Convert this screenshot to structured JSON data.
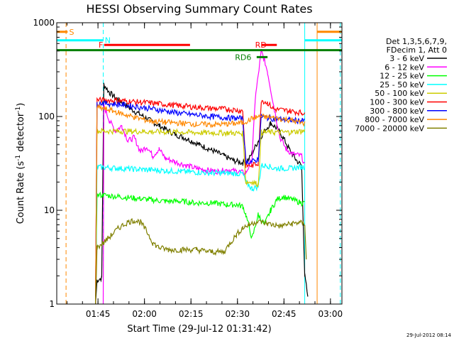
{
  "chart_data": {
    "type": "line",
    "title": "HESSI Observing Summary Count Rates",
    "xlabel": "Start Time (29-Jul-12 01:31:42)",
    "ylabel_parts": [
      "Count Rate (s",
      "-1",
      " detector",
      "-1",
      ")"
    ],
    "yscale": "log",
    "ylim": [
      1,
      1000
    ],
    "xlim_minutes": [
      0,
      92
    ],
    "y_ticks": [
      {
        "value": 1,
        "label": "1"
      },
      {
        "value": 10,
        "label": "10"
      },
      {
        "value": 100,
        "label": "100"
      },
      {
        "value": 1000,
        "label": "1000"
      }
    ],
    "x_ticks": [
      {
        "minute": 13.3,
        "label": "01:45"
      },
      {
        "minute": 28.3,
        "label": "02:00"
      },
      {
        "minute": 43.3,
        "label": "02:15"
      },
      {
        "minute": 58.3,
        "label": "02:30"
      },
      {
        "minute": 73.3,
        "label": "02:45"
      },
      {
        "minute": 88.3,
        "label": "03:00"
      }
    ],
    "legend_header": [
      "Det 1,3,5,6,7,9,",
      "FDecim 1, Att 0"
    ],
    "series": [
      {
        "name": "3 - 6 keV",
        "color": "#000000",
        "points": [
          [
            12.5,
            1
          ],
          [
            13,
            1.8
          ],
          [
            14.5,
            1.9
          ],
          [
            15.2,
            220
          ],
          [
            17,
            180
          ],
          [
            20,
            150
          ],
          [
            24,
            120
          ],
          [
            28,
            100
          ],
          [
            33,
            80
          ],
          [
            38,
            65
          ],
          [
            42,
            58
          ],
          [
            46,
            50
          ],
          [
            50,
            44
          ],
          [
            54,
            38
          ],
          [
            57,
            34
          ],
          [
            60,
            32
          ],
          [
            62,
            35
          ],
          [
            65,
            55
          ],
          [
            67,
            70
          ],
          [
            69,
            85
          ],
          [
            71,
            75
          ],
          [
            73,
            60
          ],
          [
            75,
            45
          ],
          [
            77,
            35
          ],
          [
            79,
            30
          ],
          [
            80,
            2
          ],
          [
            81,
            1.2
          ]
        ]
      },
      {
        "name": "6 - 12 keV",
        "color": "#ff00ff",
        "points": [
          [
            15,
            1
          ],
          [
            15.2,
            130
          ],
          [
            17,
            90
          ],
          [
            19,
            70
          ],
          [
            21,
            80
          ],
          [
            23,
            55
          ],
          [
            25,
            60
          ],
          [
            27,
            42
          ],
          [
            29,
            48
          ],
          [
            31,
            38
          ],
          [
            33,
            45
          ],
          [
            35,
            36
          ],
          [
            38,
            33
          ],
          [
            42,
            30
          ],
          [
            45,
            28
          ],
          [
            48,
            27
          ],
          [
            52,
            26
          ],
          [
            55,
            27
          ],
          [
            58,
            26
          ],
          [
            61,
            25
          ],
          [
            63,
            35
          ],
          [
            64,
            150
          ],
          [
            66,
            500
          ],
          [
            67,
            400
          ],
          [
            68,
            300
          ],
          [
            70,
            130
          ],
          [
            72,
            60
          ],
          [
            74,
            45
          ],
          [
            76,
            40
          ],
          [
            79,
            38
          ],
          [
            80,
            30
          ]
        ]
      },
      {
        "name": "12 - 25 keV",
        "color": "#00ff00",
        "points": [
          [
            12.5,
            1
          ],
          [
            13,
            14.5
          ],
          [
            15,
            14.5
          ],
          [
            20,
            14
          ],
          [
            25,
            13.5
          ],
          [
            30,
            13
          ],
          [
            35,
            12.5
          ],
          [
            40,
            12.5
          ],
          [
            45,
            12
          ],
          [
            50,
            12
          ],
          [
            55,
            11.5
          ],
          [
            58,
            11.5
          ],
          [
            60,
            11
          ],
          [
            61,
            9
          ],
          [
            63,
            5
          ],
          [
            65,
            9
          ],
          [
            67,
            7
          ],
          [
            69,
            10
          ],
          [
            71,
            13
          ],
          [
            73,
            14
          ],
          [
            76,
            13
          ],
          [
            79,
            12
          ],
          [
            80,
            12
          ]
        ]
      },
      {
        "name": "25 - 50 keV",
        "color": "#00ffff",
        "points": [
          [
            12.5,
            1
          ],
          [
            13,
            29
          ],
          [
            20,
            28
          ],
          [
            30,
            27
          ],
          [
            40,
            26
          ],
          [
            50,
            25
          ],
          [
            55,
            25
          ],
          [
            60,
            24.5
          ],
          [
            61,
            20
          ],
          [
            63,
            17
          ],
          [
            65,
            18
          ],
          [
            66,
            30
          ],
          [
            68,
            30
          ],
          [
            70,
            28
          ],
          [
            75,
            28
          ],
          [
            79,
            29
          ],
          [
            80,
            29
          ]
        ]
      },
      {
        "name": "50 - 100 keV",
        "color": "#cccc00",
        "points": [
          [
            12.5,
            1
          ],
          [
            13,
            70
          ],
          [
            20,
            70
          ],
          [
            30,
            69
          ],
          [
            40,
            68
          ],
          [
            50,
            67
          ],
          [
            55,
            67
          ],
          [
            60,
            66
          ],
          [
            61,
            20
          ],
          [
            63,
            20
          ],
          [
            65,
            19
          ],
          [
            66,
            68
          ],
          [
            70,
            68
          ],
          [
            75,
            68
          ],
          [
            79,
            70
          ],
          [
            80,
            70
          ]
        ]
      },
      {
        "name": "100 - 300 keV",
        "color": "#ff0000",
        "points": [
          [
            12.5,
            1
          ],
          [
            13,
            150
          ],
          [
            20,
            148
          ],
          [
            30,
            140
          ],
          [
            40,
            130
          ],
          [
            50,
            122
          ],
          [
            55,
            120
          ],
          [
            60,
            115
          ],
          [
            61,
            30
          ],
          [
            63,
            30
          ],
          [
            65,
            32
          ],
          [
            66,
            150
          ],
          [
            68,
            140
          ],
          [
            70,
            120
          ],
          [
            75,
            115
          ],
          [
            79,
            110
          ],
          [
            80,
            110
          ]
        ]
      },
      {
        "name": "300 - 800 keV",
        "color": "#0000ff",
        "points": [
          [
            12.5,
            1
          ],
          [
            13,
            140
          ],
          [
            20,
            135
          ],
          [
            30,
            122
          ],
          [
            40,
            108
          ],
          [
            50,
            100
          ],
          [
            55,
            97
          ],
          [
            60,
            95
          ],
          [
            61,
            33
          ],
          [
            63,
            33
          ],
          [
            65,
            35
          ],
          [
            66,
            100
          ],
          [
            68,
            97
          ],
          [
            70,
            95
          ],
          [
            75,
            92
          ],
          [
            79,
            90
          ],
          [
            80,
            90
          ]
        ]
      },
      {
        "name": "800 - 7000 keV",
        "color": "#ff8800",
        "points": [
          [
            12.5,
            1
          ],
          [
            13,
            125
          ],
          [
            16,
            120
          ],
          [
            20,
            110
          ],
          [
            25,
            98
          ],
          [
            30,
            90
          ],
          [
            35,
            87
          ],
          [
            40,
            85
          ],
          [
            45,
            83
          ],
          [
            50,
            82
          ],
          [
            55,
            83
          ],
          [
            60,
            86
          ],
          [
            62,
            92
          ],
          [
            64,
            98
          ],
          [
            66,
            100
          ],
          [
            70,
            97
          ],
          [
            75,
            92
          ],
          [
            79,
            85
          ],
          [
            80,
            85
          ]
        ]
      },
      {
        "name": "7000 - 20000 keV",
        "color": "#808000",
        "points": [
          [
            12.5,
            1
          ],
          [
            13,
            4
          ],
          [
            15,
            4.5
          ],
          [
            17,
            5.2
          ],
          [
            20,
            6.5
          ],
          [
            23,
            7.5
          ],
          [
            25,
            7.8
          ],
          [
            27,
            7.5
          ],
          [
            29,
            6
          ],
          [
            31,
            4.5
          ],
          [
            33,
            4
          ],
          [
            36,
            3.8
          ],
          [
            40,
            3.8
          ],
          [
            45,
            3.8
          ],
          [
            50,
            3.6
          ],
          [
            54,
            3.6
          ],
          [
            56,
            4.5
          ],
          [
            58,
            5.5
          ],
          [
            60,
            6.5
          ],
          [
            62,
            7
          ],
          [
            64,
            7.5
          ],
          [
            66,
            7.5
          ],
          [
            68,
            7.2
          ],
          [
            70,
            7
          ],
          [
            72,
            6.8
          ],
          [
            74,
            7
          ],
          [
            76,
            7.2
          ],
          [
            78,
            7.4
          ],
          [
            80,
            7.2
          ],
          [
            80.5,
            3
          ]
        ]
      }
    ],
    "flags": [
      {
        "label": "S",
        "color": "#ff8800",
        "y": 800,
        "x0": 0,
        "x1": 3.5,
        "label_x": 4
      },
      {
        "label": "N",
        "color": "#00ffff",
        "y": 650,
        "x0": 0,
        "x1": 15,
        "label_x": 15.5
      },
      {
        "label": "F",
        "color": "#ff0000",
        "y": 580,
        "x0": 15.3,
        "x1": 43,
        "label_x": 13.5
      },
      {
        "label": "RD",
        "color": "#ff0000",
        "y": 580,
        "x0": 66,
        "x1": 71,
        "label_x": 64
      },
      {
        "label": "",
        "color": "#008000",
        "y": 510,
        "x0": 0,
        "x1": 92,
        "label_x": 0
      },
      {
        "label": "RD6",
        "color": "#008000",
        "y": 430,
        "x0": 64.5,
        "x1": 68,
        "label_x": 57.5
      }
    ],
    "flag_segments_right": [
      {
        "color": "#00ffff",
        "y": 650,
        "x0": 80,
        "x1": 92
      },
      {
        "color": "#ff8800",
        "y": 800,
        "x0": 84,
        "x1": 92
      }
    ],
    "vlines": [
      {
        "x": 0,
        "color": "#00ffff",
        "dashed": false
      },
      {
        "x": 3,
        "color": "#ff8800",
        "dashed": true
      },
      {
        "x": 15,
        "color": "#00ffff",
        "dashed": true
      },
      {
        "x": 80,
        "color": "#00ffff",
        "dashed": false
      },
      {
        "x": 84,
        "color": "#ff8800",
        "dashed": false
      },
      {
        "x": 91.5,
        "color": "#00ffff",
        "dashed": true
      }
    ],
    "timestamp": "29-Jul-2012 08:14"
  }
}
